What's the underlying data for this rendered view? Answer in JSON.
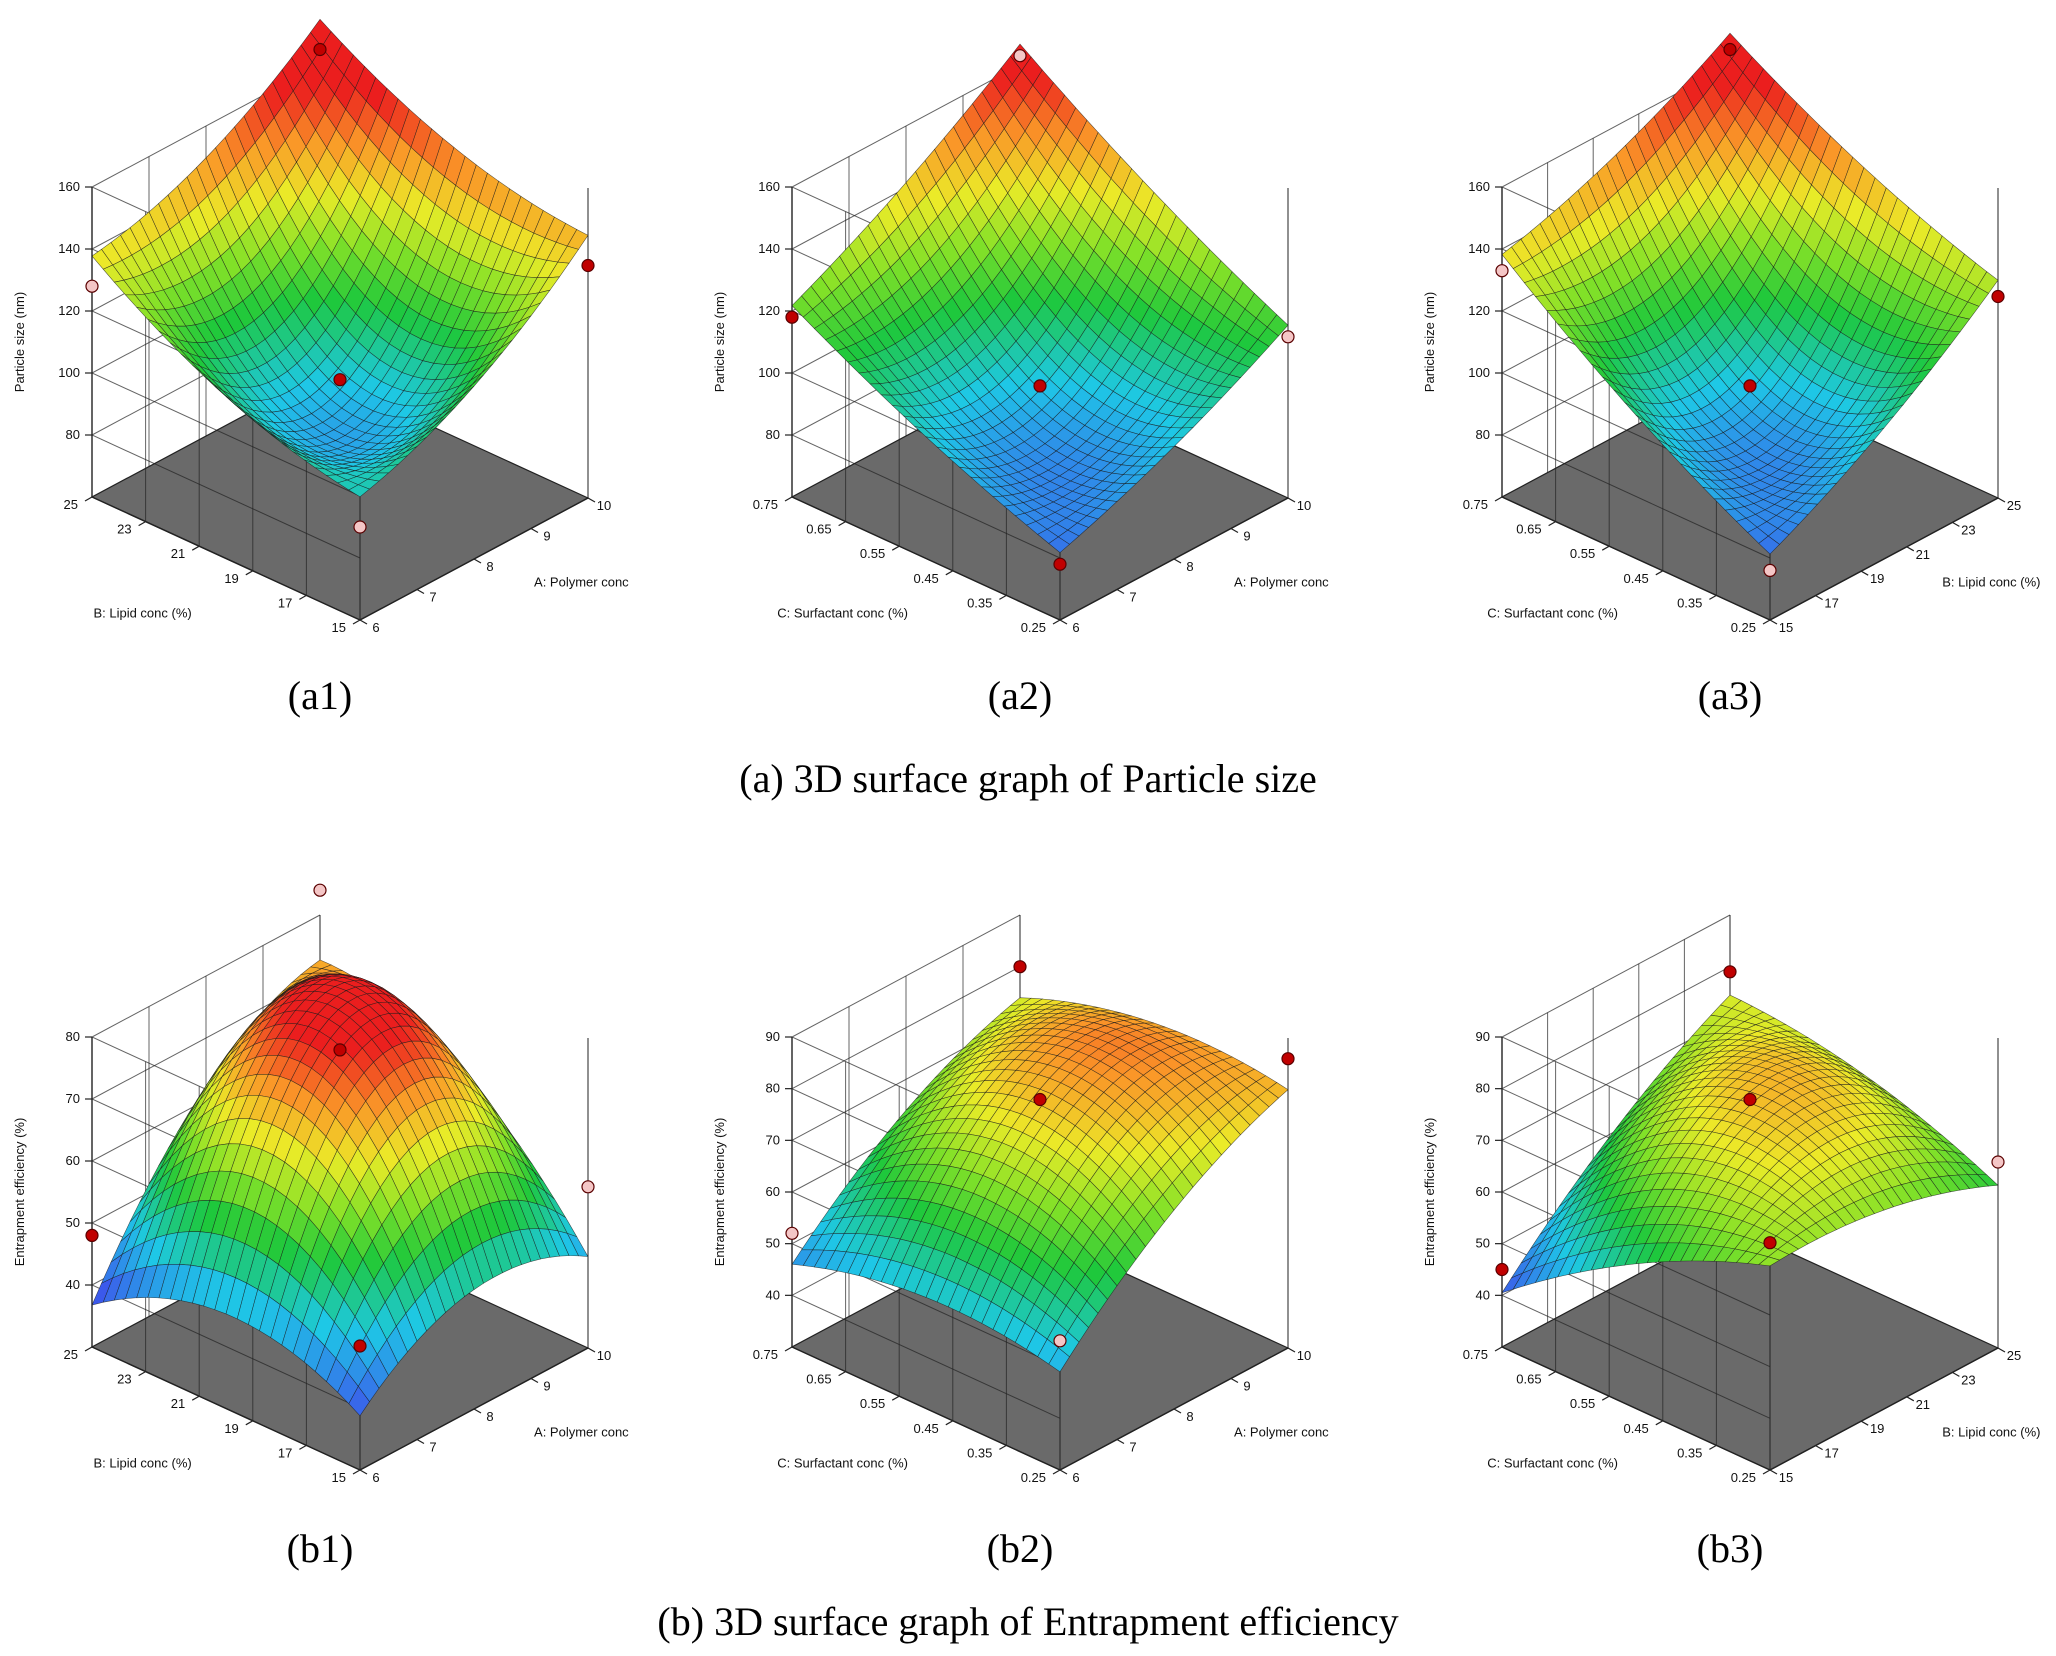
{
  "captions": {
    "a": "(a) 3D surface graph of Particle size",
    "b": "(b) 3D surface graph of Entrapment efficiency"
  },
  "colors": {
    "floor": "#6a6a6a",
    "grid": "#222222",
    "point": "#c00000",
    "point_light": "#f4c6c6"
  },
  "chart_data": [
    {
      "id": "a1",
      "label": "(a1)",
      "type": "surface3d",
      "zlabel": "Particle size (nm)",
      "zticks": [
        80,
        100,
        120,
        140,
        160
      ],
      "zlim": [
        60,
        160
      ],
      "xlabel": "A: Polymer conc",
      "xticks": [
        "6",
        "7",
        "8",
        "9",
        "10"
      ],
      "xlim": [
        6,
        10
      ],
      "ylabel": "B: Lipid conc (%)",
      "yticks": [
        "15",
        "17",
        "19",
        "21",
        "23",
        "25"
      ],
      "ylim": [
        15,
        25
      ],
      "surface": {
        "corners": {
          "front": 90,
          "right": 135,
          "back": 165,
          "left": 128
        },
        "center": 98,
        "curvature": 26
      },
      "points": [
        {
          "x": 8,
          "y": 20,
          "z": 98,
          "light": false
        },
        {
          "x": 6,
          "y": 15,
          "z": 90,
          "light": true
        },
        {
          "x": 10,
          "y": 15,
          "z": 135,
          "light": false
        },
        {
          "x": 10,
          "y": 25,
          "z": 165,
          "light": false
        },
        {
          "x": 6,
          "y": 25,
          "z": 128,
          "light": true
        }
      ]
    },
    {
      "id": "a2",
      "label": "(a2)",
      "type": "surface3d",
      "zlabel": "Particle size (nm)",
      "zticks": [
        80,
        100,
        120,
        140,
        160
      ],
      "zlim": [
        60,
        160
      ],
      "xlabel": "A: Polymer conc",
      "xticks": [
        "6",
        "7",
        "8",
        "9",
        "10"
      ],
      "xlim": [
        6,
        10
      ],
      "ylabel": "C: Surfactant conc (%)",
      "yticks": [
        "0.25",
        "0.35",
        "0.45",
        "0.55",
        "0.65",
        "0.75"
      ],
      "ylim": [
        0.25,
        0.75
      ],
      "surface": {
        "corners": {
          "front": 78,
          "right": 112,
          "back": 163,
          "left": 118
        },
        "center": 96,
        "curvature": 10
      },
      "points": [
        {
          "x": 8,
          "y": 0.5,
          "z": 96,
          "light": false
        },
        {
          "x": 6,
          "y": 0.25,
          "z": 78,
          "light": false
        },
        {
          "x": 10,
          "y": 0.25,
          "z": 112,
          "light": true
        },
        {
          "x": 10,
          "y": 0.75,
          "z": 163,
          "light": true
        },
        {
          "x": 6,
          "y": 0.75,
          "z": 118,
          "light": false
        }
      ]
    },
    {
      "id": "a3",
      "label": "(a3)",
      "type": "surface3d",
      "zlabel": "Particle size (nm)",
      "zticks": [
        80,
        100,
        120,
        140,
        160
      ],
      "zlim": [
        60,
        160
      ],
      "xlabel": "B: Lipid conc (%)",
      "xticks": [
        "15",
        "17",
        "19",
        "21",
        "23",
        "25"
      ],
      "xlim": [
        15,
        25
      ],
      "ylabel": "C: Surfactant conc (%)",
      "yticks": [
        "0.25",
        "0.35",
        "0.45",
        "0.55",
        "0.65",
        "0.75"
      ],
      "ylim": [
        0.25,
        0.75
      ],
      "surface": {
        "corners": {
          "front": 76,
          "right": 125,
          "back": 165,
          "left": 133
        },
        "center": 96,
        "curvature": 14
      },
      "points": [
        {
          "x": 20,
          "y": 0.5,
          "z": 96,
          "light": false
        },
        {
          "x": 15,
          "y": 0.25,
          "z": 76,
          "light": true
        },
        {
          "x": 25,
          "y": 0.25,
          "z": 125,
          "light": false
        },
        {
          "x": 25,
          "y": 0.75,
          "z": 165,
          "light": false
        },
        {
          "x": 15,
          "y": 0.75,
          "z": 133,
          "light": true
        }
      ]
    },
    {
      "id": "b1",
      "label": "(b1)",
      "type": "surface3d",
      "zlabel": "Entrapment efficiency (%)",
      "zticks": [
        40,
        50,
        60,
        70,
        80
      ],
      "zlim": [
        30,
        80
      ],
      "xlabel": "A: Polymer conc",
      "xticks": [
        "6",
        "7",
        "8",
        "9",
        "10"
      ],
      "xlim": [
        6,
        10
      ],
      "ylabel": "B: Lipid conc (%)",
      "yticks": [
        "15",
        "17",
        "19",
        "21",
        "23",
        "25"
      ],
      "ylim": [
        15,
        25
      ],
      "surface": {
        "corners": {
          "front": 50,
          "right": 56,
          "back": 84,
          "left": 48
        },
        "center": 78,
        "curvature": -30
      },
      "points": [
        {
          "x": 8,
          "y": 20,
          "z": 78,
          "light": false
        },
        {
          "x": 6,
          "y": 15,
          "z": 50,
          "light": false
        },
        {
          "x": 10,
          "y": 15,
          "z": 56,
          "light": true
        },
        {
          "x": 10,
          "y": 25,
          "z": 84,
          "light": true
        },
        {
          "x": 6,
          "y": 25,
          "z": 48,
          "light": false
        }
      ]
    },
    {
      "id": "b2",
      "label": "(b2)",
      "type": "surface3d",
      "zlabel": "Entrapment efficiency (%)",
      "zticks": [
        40,
        50,
        60,
        70,
        80,
        90
      ],
      "zlim": [
        30,
        90
      ],
      "xlabel": "A: Polymer conc",
      "xticks": [
        "6",
        "7",
        "8",
        "9",
        "10"
      ],
      "xlim": [
        6,
        10
      ],
      "ylabel": "C: Surfactant conc (%)",
      "yticks": [
        "0.25",
        "0.35",
        "0.45",
        "0.55",
        "0.65",
        "0.75"
      ],
      "ylim": [
        0.25,
        0.75
      ],
      "surface": {
        "corners": {
          "front": 55,
          "right": 86,
          "back": 80,
          "left": 52
        },
        "center": 78,
        "curvature": -16
      },
      "points": [
        {
          "x": 8,
          "y": 0.5,
          "z": 78,
          "light": false
        },
        {
          "x": 6,
          "y": 0.25,
          "z": 55,
          "light": true
        },
        {
          "x": 10,
          "y": 0.25,
          "z": 86,
          "light": false
        },
        {
          "x": 10,
          "y": 0.75,
          "z": 80,
          "light": false
        },
        {
          "x": 6,
          "y": 0.75,
          "z": 52,
          "light": true
        }
      ]
    },
    {
      "id": "b3",
      "label": "(b3)",
      "type": "surface3d",
      "zlabel": "Entrapment efficiency (%)",
      "zticks": [
        40,
        50,
        60,
        70,
        80,
        90
      ],
      "zlim": [
        30,
        90
      ],
      "xlabel": "B: Lipid conc (%)",
      "xticks": [
        "15",
        "17",
        "19",
        "21",
        "23",
        "25"
      ],
      "xlim": [
        15,
        25
      ],
      "ylabel": "C: Surfactant conc (%)",
      "yticks": [
        "0.25",
        "0.35",
        "0.45",
        "0.55",
        "0.65",
        "0.75"
      ],
      "ylim": [
        0.25,
        0.75
      ],
      "surface": {
        "corners": {
          "front": 74,
          "right": 66,
          "back": 79,
          "left": 45
        },
        "center": 78,
        "curvature": -12
      },
      "points": [
        {
          "x": 20,
          "y": 0.5,
          "z": 78,
          "light": false
        },
        {
          "x": 15,
          "y": 0.25,
          "z": 74,
          "light": false
        },
        {
          "x": 25,
          "y": 0.25,
          "z": 66,
          "light": true
        },
        {
          "x": 25,
          "y": 0.75,
          "z": 79,
          "light": false
        },
        {
          "x": 15,
          "y": 0.75,
          "z": 45,
          "light": false
        }
      ]
    }
  ]
}
